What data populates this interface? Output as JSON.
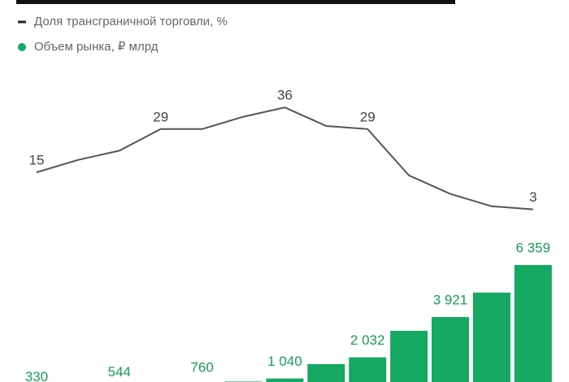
{
  "chart_data": [
    {
      "type": "line",
      "name": "Доля трансграничной торговли, %",
      "color": "#555555",
      "values": [
        15,
        19,
        22,
        29,
        29,
        33,
        36,
        30,
        29,
        14,
        8,
        4,
        3
      ],
      "value_labels": [
        "15",
        null,
        null,
        "29",
        null,
        null,
        "36",
        null,
        "29",
        null,
        null,
        null,
        "3"
      ]
    },
    {
      "type": "bar",
      "name": "Объем рынка, ₽ млрд",
      "color": "#14a862",
      "values": [
        330,
        430,
        544,
        650,
        760,
        900,
        1040,
        1714,
        2032,
        3276,
        3921,
        5067,
        6359
      ],
      "value_labels": [
        "330",
        null,
        "544",
        null,
        "760",
        null,
        "1 040",
        null,
        "2 032",
        null,
        "3 921",
        null,
        "6 359"
      ]
    }
  ]
}
